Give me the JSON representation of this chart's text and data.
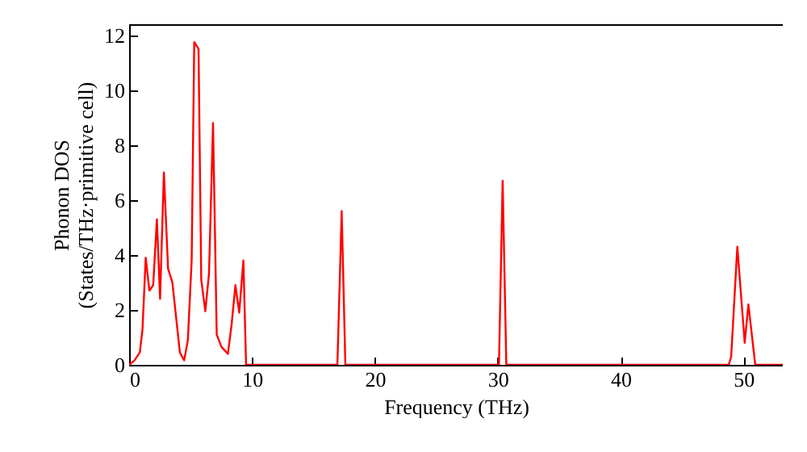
{
  "chart_data": {
    "type": "line",
    "xlabel": "Frequency (THz)",
    "ylabel": [
      "Phonon DOS",
      "(States/THz·primitive cell)"
    ],
    "x": [
      0,
      0.43,
      0.87,
      1.09,
      1.35,
      1.65,
      1.96,
      2.26,
      2.52,
      2.83,
      3.17,
      3.52,
      4.13,
      4.48,
      4.78,
      5.09,
      5.3,
      5.65,
      5.87,
      6.2,
      6.5,
      6.83,
      7.13,
      7.52,
      8.04,
      8.35,
      8.65,
      8.96,
      9.3,
      9.52,
      16.95,
      17.3,
      17.6,
      30.1,
      30.4,
      30.7,
      48.8,
      49.0,
      49.5,
      50.1,
      50.4,
      50.96,
      53.2
    ],
    "series": [
      {
        "color": "#ff0000",
        "values": [
          0,
          0.16,
          0.45,
          1.3,
          3.9,
          2.7,
          2.9,
          5.3,
          2.4,
          7.0,
          3.5,
          3.0,
          0.45,
          0.16,
          0.9,
          3.8,
          11.75,
          11.5,
          3.1,
          1.95,
          3.3,
          8.8,
          1.1,
          0.65,
          0.4,
          1.5,
          2.9,
          1.9,
          3.8,
          0,
          0,
          5.6,
          0,
          0,
          6.7,
          0,
          0,
          0.3,
          4.3,
          0.8,
          2.2,
          0,
          0
        ]
      }
    ],
    "xlim": [
      0,
      53.2
    ],
    "ylim": [
      0,
      12.4
    ],
    "xticks": [
      0,
      10,
      20,
      30,
      40,
      50
    ],
    "yticks": [
      0,
      2,
      4,
      6,
      8,
      10,
      12
    ],
    "marker": "none",
    "line_style": "solid"
  }
}
